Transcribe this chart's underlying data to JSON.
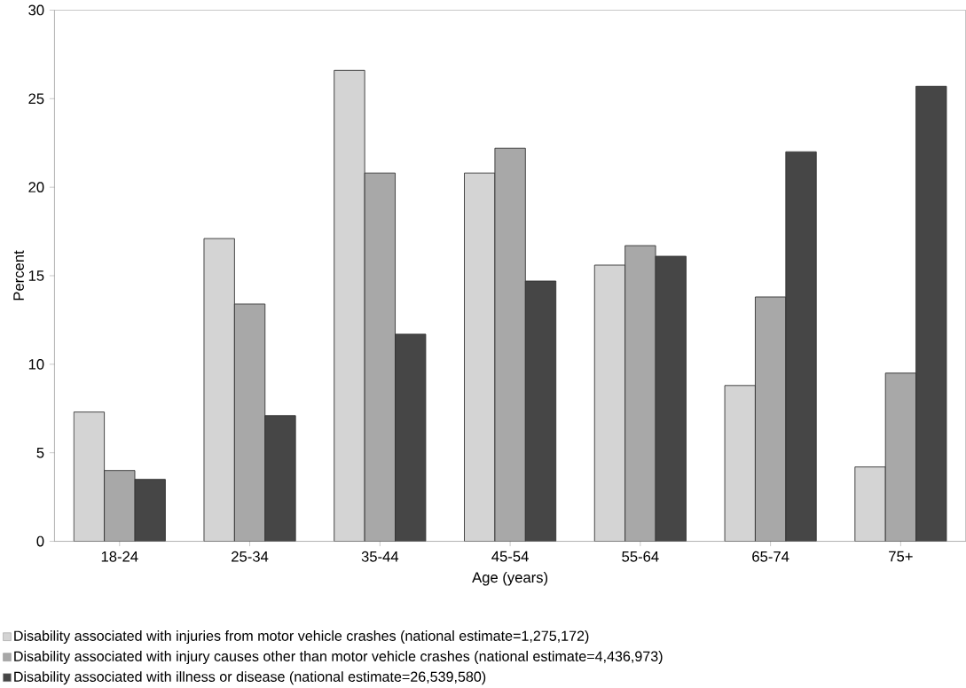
{
  "chart_data": {
    "type": "bar",
    "xlabel": "Age (years)",
    "ylabel": "Percent",
    "categories": [
      "18-24",
      "25-34",
      "35-44",
      "45-54",
      "55-64",
      "65-74",
      "75+"
    ],
    "series": [
      {
        "name": "Disability associated with injuries from motor vehicle crashes  (national estimate=1,275,172)",
        "color": "#d4d4d4",
        "values": [
          7.3,
          17.1,
          26.6,
          20.8,
          15.6,
          8.8,
          4.2
        ]
      },
      {
        "name": "Disability associated with injury causes other than motor vehicle crashes (national estimate=4,436,973)",
        "color": "#a8a8a8",
        "values": [
          4.0,
          13.4,
          20.8,
          22.2,
          16.7,
          13.8,
          9.5
        ]
      },
      {
        "name": "Disability associated with illness or disease (national estimate=26,539,580)",
        "color": "#464646",
        "values": [
          3.5,
          7.1,
          11.7,
          14.7,
          16.1,
          22.0,
          25.7
        ]
      }
    ],
    "ylim": [
      0,
      30
    ],
    "yticks": [
      0,
      5,
      10,
      15,
      20,
      25,
      30
    ],
    "grid": false,
    "legend": "bottom"
  }
}
